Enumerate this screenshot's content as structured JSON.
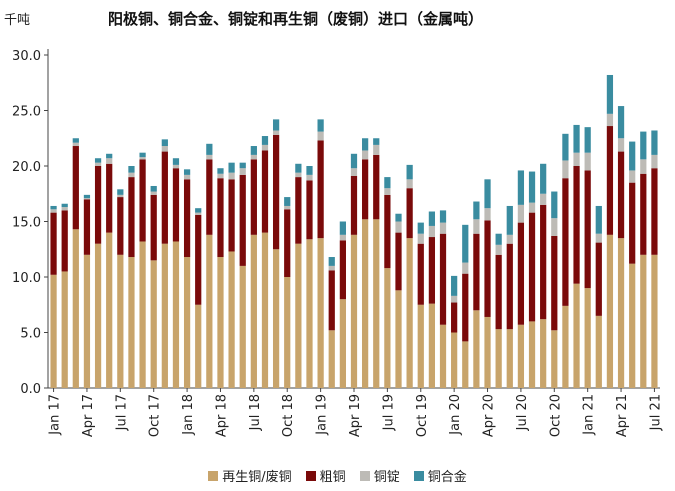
{
  "chart_data": {
    "type": "bar",
    "stacked": true,
    "title": "阳极铜、铜合金、铜锭和再生铜（废铜）进口（金属吨）",
    "ylabel": "千吨",
    "ylim": [
      0,
      30
    ],
    "yticks": [
      "0.0",
      "5.0",
      "10.0",
      "15.0",
      "20.0",
      "25.0",
      "30.0"
    ],
    "grid": false,
    "legend_position": "bottom",
    "x_tick_labels": [
      "Jan 17",
      "Apr 17",
      "Jul 17",
      "Oct 17",
      "Jan 18",
      "Apr 18",
      "Jul 18",
      "Oct 18",
      "Jan 19",
      "Apr 19",
      "Jul 19",
      "Oct 19",
      "Jan 20",
      "Apr 20",
      "Jul 20",
      "Oct 20",
      "Jan 21",
      "Apr 21",
      "Jul 21"
    ],
    "categories": [
      "2017-01",
      "2017-02",
      "2017-03",
      "2017-04",
      "2017-05",
      "2017-06",
      "2017-07",
      "2017-08",
      "2017-09",
      "2017-10",
      "2017-11",
      "2017-12",
      "2018-01",
      "2018-02",
      "2018-03",
      "2018-04",
      "2018-05",
      "2018-06",
      "2018-07",
      "2018-08",
      "2018-09",
      "2018-10",
      "2018-11",
      "2018-12",
      "2019-01",
      "2019-02",
      "2019-03",
      "2019-04",
      "2019-05",
      "2019-06",
      "2019-07",
      "2019-08",
      "2019-09",
      "2019-10",
      "2019-11",
      "2019-12",
      "2020-01",
      "2020-02",
      "2020-03",
      "2020-04",
      "2020-05",
      "2020-06",
      "2020-07",
      "2020-08",
      "2020-09",
      "2020-10",
      "2020-11",
      "2020-12",
      "2021-01",
      "2021-02",
      "2021-03",
      "2021-04",
      "2021-05",
      "2021-06",
      "2021-07"
    ],
    "series": [
      {
        "name": "再生铜/废铜",
        "color": "#C8A46B",
        "values": [
          10.2,
          10.5,
          14.3,
          12.0,
          13.0,
          14.0,
          12.0,
          11.8,
          13.2,
          11.5,
          13.0,
          13.2,
          11.8,
          7.5,
          13.8,
          11.8,
          12.3,
          11.0,
          13.8,
          14.0,
          12.5,
          10.0,
          13.0,
          13.4,
          13.5,
          5.2,
          8.0,
          13.8,
          15.2,
          15.2,
          10.8,
          8.8,
          13.5,
          7.5,
          7.6,
          5.7,
          5.0,
          4.2,
          7.0,
          6.4,
          5.3,
          5.3,
          5.7,
          6.0,
          6.2,
          5.2,
          7.4,
          9.4,
          9.0,
          6.5,
          13.8,
          13.5,
          11.2,
          12.0,
          12.0
        ]
      },
      {
        "name": "粗铜",
        "color": "#7A0A0A",
        "values": [
          5.6,
          5.5,
          7.5,
          5.0,
          7.0,
          6.2,
          5.2,
          7.2,
          7.4,
          5.9,
          8.3,
          6.6,
          7.0,
          8.1,
          6.8,
          7.1,
          6.5,
          8.2,
          6.8,
          7.4,
          10.3,
          6.1,
          6.0,
          5.3,
          8.8,
          5.4,
          5.3,
          5.3,
          5.4,
          5.8,
          6.6,
          5.2,
          4.5,
          5.5,
          6.0,
          8.2,
          2.7,
          6.1,
          6.9,
          8.7,
          6.7,
          7.7,
          9.2,
          9.8,
          10.3,
          8.5,
          11.5,
          10.6,
          10.6,
          6.6,
          9.8,
          7.8,
          7.3,
          7.3,
          7.8
        ]
      },
      {
        "name": "铜锭",
        "color": "#BDBBB6",
        "values": [
          0.3,
          0.3,
          0.3,
          0.1,
          0.3,
          0.5,
          0.2,
          0.4,
          0.2,
          0.3,
          0.5,
          0.3,
          0.4,
          0.2,
          0.4,
          0.4,
          0.6,
          0.6,
          0.4,
          0.5,
          0.4,
          0.3,
          0.4,
          0.5,
          0.8,
          0.4,
          0.5,
          0.7,
          0.8,
          0.9,
          0.6,
          1.0,
          0.8,
          0.9,
          1.0,
          1.0,
          0.6,
          1.0,
          1.3,
          1.1,
          0.9,
          0.8,
          1.6,
          0.9,
          1.0,
          1.6,
          1.6,
          1.2,
          1.6,
          0.8,
          1.1,
          1.2,
          1.1,
          1.3,
          1.2
        ]
      },
      {
        "name": "铜合金",
        "color": "#3A8CA0",
        "values": [
          0.3,
          0.3,
          0.4,
          0.3,
          0.4,
          0.4,
          0.5,
          0.6,
          0.4,
          0.5,
          0.6,
          0.6,
          0.5,
          0.4,
          1.0,
          0.5,
          0.9,
          0.5,
          0.8,
          0.8,
          1.0,
          0.8,
          0.8,
          0.8,
          1.1,
          0.8,
          1.2,
          1.3,
          1.1,
          0.6,
          1.0,
          0.7,
          1.3,
          1.0,
          1.3,
          1.1,
          1.8,
          3.4,
          1.6,
          2.6,
          1.0,
          2.6,
          3.1,
          2.8,
          2.7,
          2.4,
          2.4,
          2.5,
          2.3,
          2.5,
          3.5,
          2.9,
          2.6,
          2.5,
          2.2
        ]
      }
    ]
  }
}
